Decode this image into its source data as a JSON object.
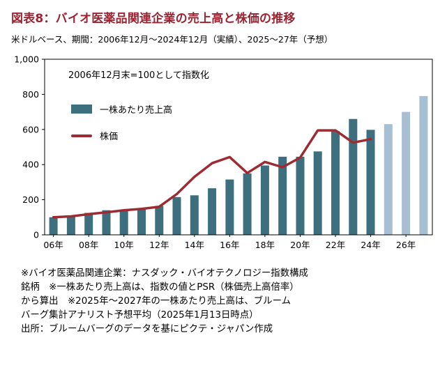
{
  "header": {
    "title": "図表8：バイオ医薬品関連企業の売上高と株価の推移",
    "subtitle": "米ドルベース、期間：2006年12月～2024年12月（実績）、2025～27年（予想）"
  },
  "chart_data": {
    "type": "bar+line",
    "annotation": "2006年12月末=100として指数化",
    "ylim": [
      0,
      1000
    ],
    "yticks": [
      {
        "value": 0,
        "label": "0"
      },
      {
        "value": 200,
        "label": "200"
      },
      {
        "value": 400,
        "label": "400"
      },
      {
        "value": 600,
        "label": "600"
      },
      {
        "value": 800,
        "label": "800"
      },
      {
        "value": 1000,
        "label": "1,000"
      }
    ],
    "years": [
      2006,
      2007,
      2008,
      2009,
      2010,
      2011,
      2012,
      2013,
      2014,
      2015,
      2016,
      2017,
      2018,
      2019,
      2020,
      2021,
      2022,
      2023,
      2024,
      2025,
      2026,
      2027
    ],
    "x_ticks": [
      {
        "year": 2006,
        "label": "06年"
      },
      {
        "year": 2008,
        "label": "08年"
      },
      {
        "year": 2010,
        "label": "10年"
      },
      {
        "year": 2012,
        "label": "12年"
      },
      {
        "year": 2014,
        "label": "14年"
      },
      {
        "year": 2016,
        "label": "16年"
      },
      {
        "year": 2018,
        "label": "18年"
      },
      {
        "year": 2020,
        "label": "20年"
      },
      {
        "year": 2022,
        "label": "22年"
      },
      {
        "year": 2024,
        "label": "24年"
      },
      {
        "year": 2026,
        "label": "26年"
      }
    ],
    "series": [
      {
        "name": "一株あたり売上高",
        "type": "bar",
        "forecast_from_year": 2025,
        "values": [
          100,
          110,
          125,
          140,
          135,
          150,
          165,
          215,
          225,
          265,
          315,
          350,
          395,
          445,
          445,
          475,
          590,
          660,
          598,
          630,
          700,
          790
        ]
      },
      {
        "name": "株価",
        "type": "line",
        "values": [
          100,
          105,
          118,
          128,
          140,
          148,
          160,
          232,
          330,
          408,
          443,
          352,
          415,
          385,
          440,
          595,
          595,
          525,
          545
        ]
      }
    ],
    "colors": {
      "bar": "#3d6f7f",
      "bar_forecast": "#a7bfd3",
      "line": "#9e2b31",
      "title": "#9a2432"
    }
  },
  "footnotes": {
    "lines": [
      "※バイオ医薬品関連企業：ナスダック・バイオテクノロジー指数構成",
      "銘柄　※一株あたり売上高は、指数の値とPSR（株価売上高倍率）",
      "から算出　※2025年～2027年の一株あたり売上高は、ブルーム",
      "バーグ集計アナリスト予想平均（2025年1月13日時点）",
      "出所：ブルームバーグのデータを基にピクテ・ジャパン作成"
    ]
  }
}
